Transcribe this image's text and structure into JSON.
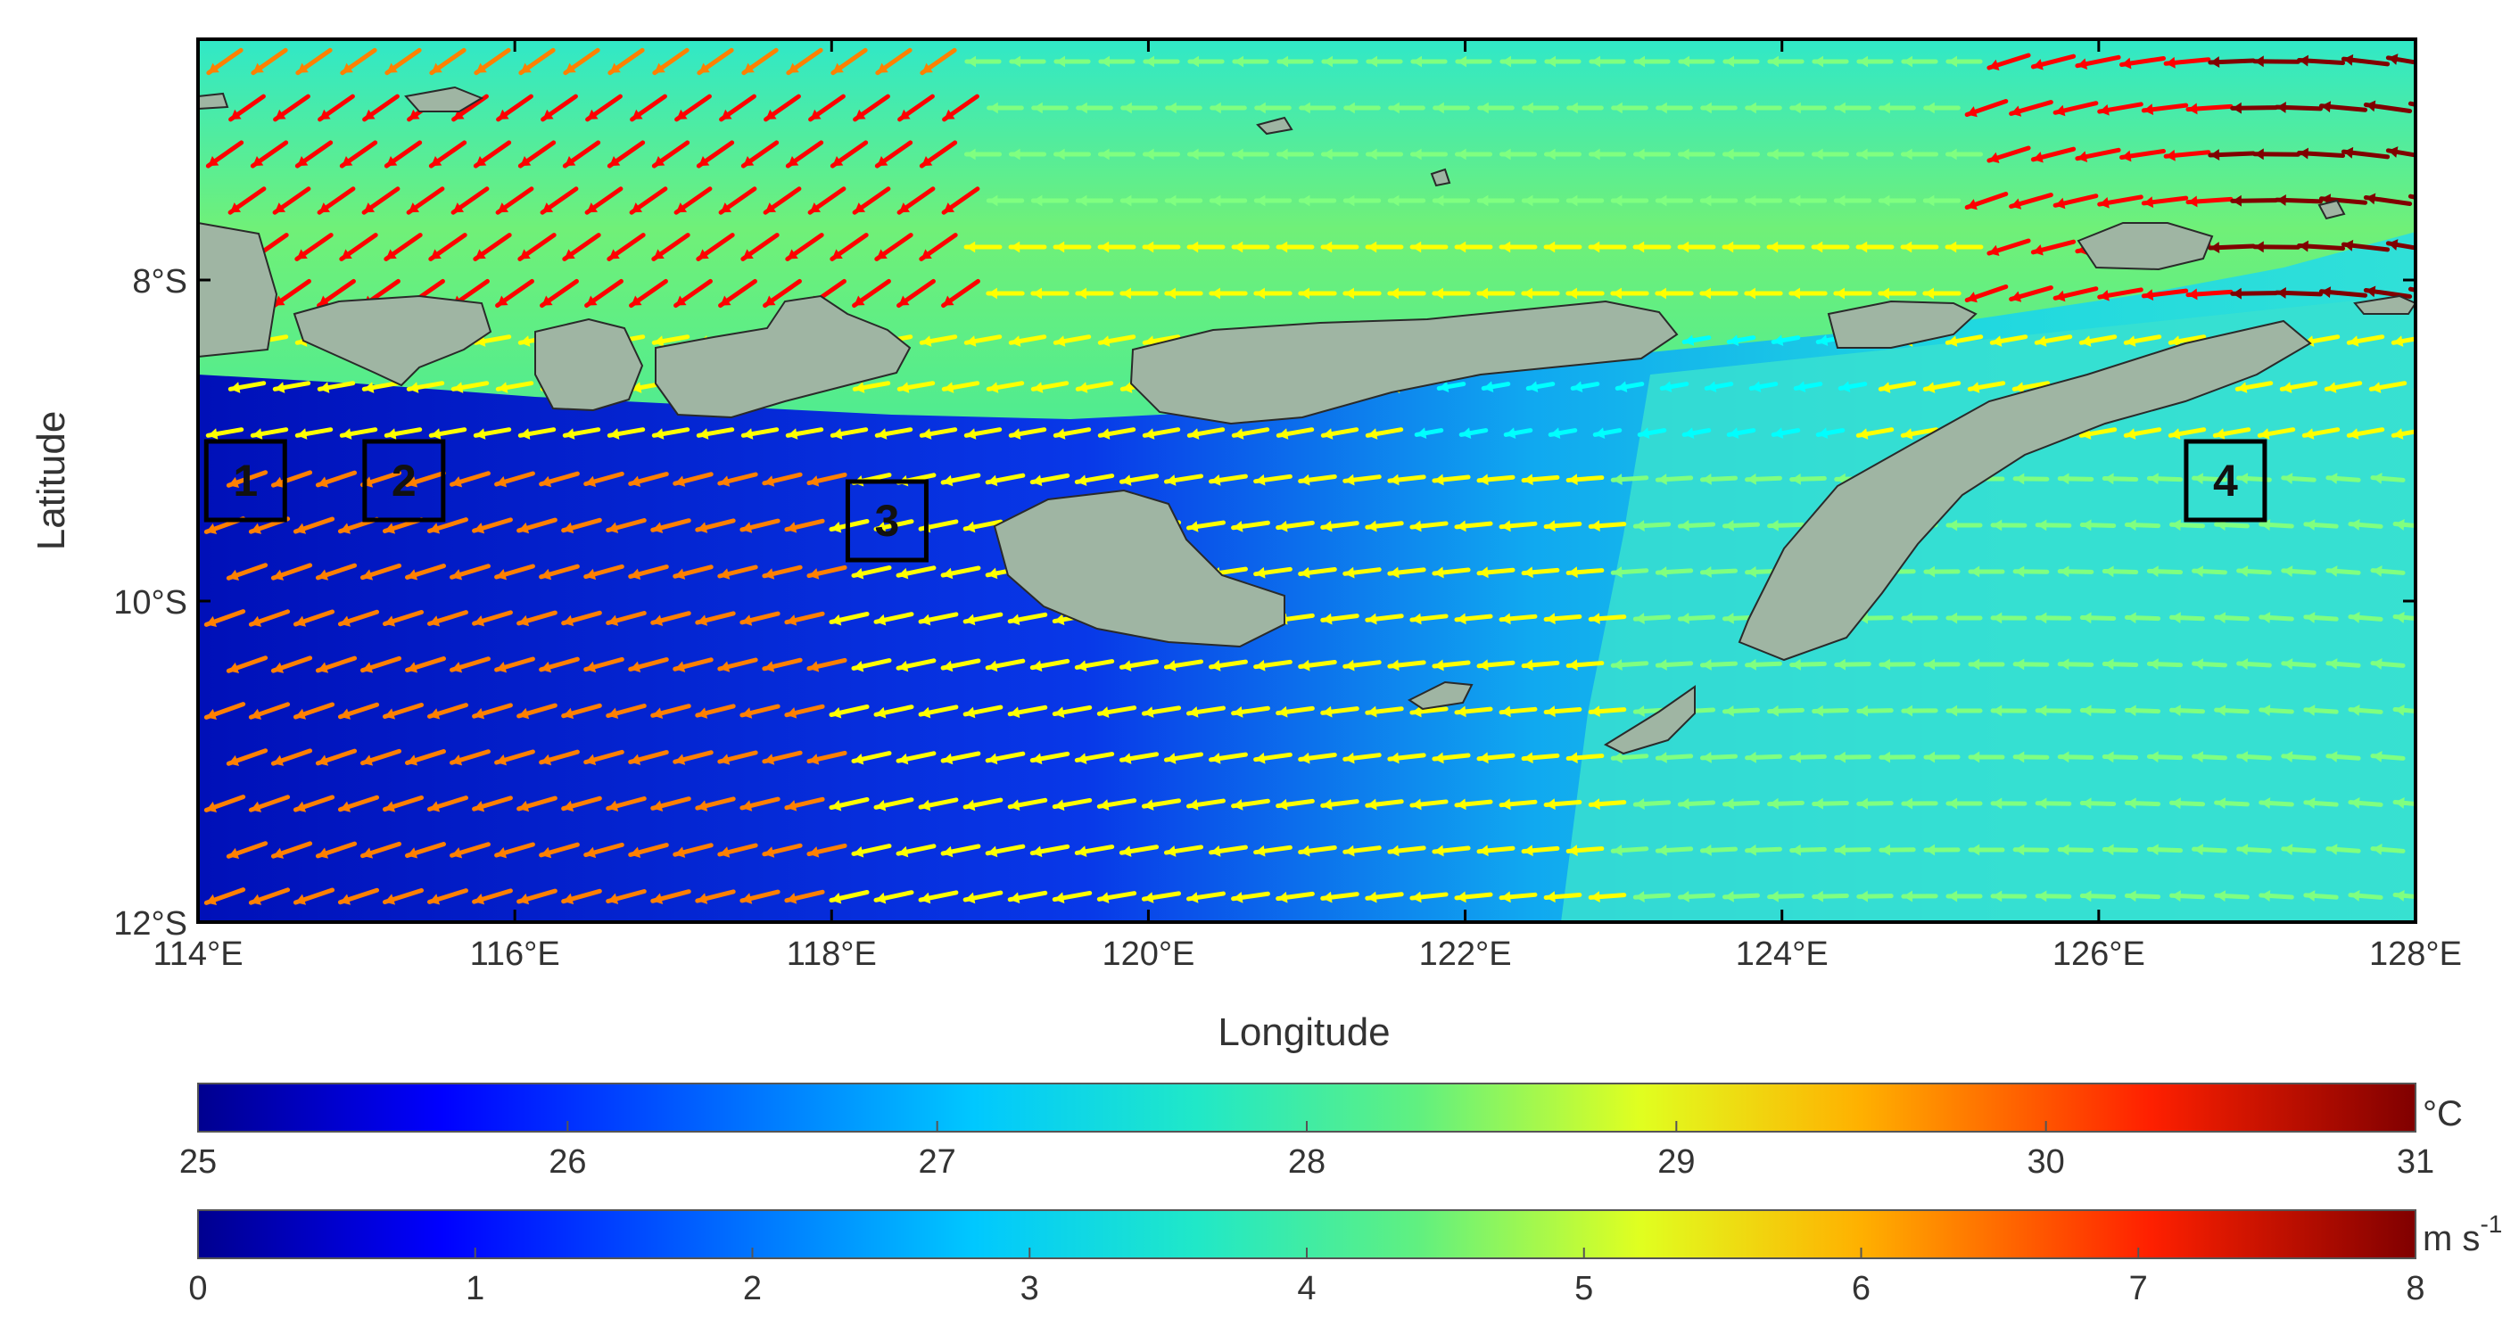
{
  "map": {
    "lon_ticks": [
      "114°E",
      "116°E",
      "118°E",
      "120°E",
      "122°E",
      "124°E",
      "126°E",
      "128°E"
    ],
    "lat_ticks": [
      "8°S",
      "10°S",
      "12°S"
    ],
    "xlabel": "Longitude",
    "ylabel": "Latitude",
    "lon_range": [
      114,
      128
    ],
    "lat_range": [
      -12,
      -6.5
    ],
    "land_color": "#9fb5a3",
    "boxes": [
      {
        "label": "1",
        "lon": 114.3,
        "lat": -9.25
      },
      {
        "label": "2",
        "lon": 115.3,
        "lat": -9.25
      },
      {
        "label": "3",
        "lon": 118.35,
        "lat": -9.5
      },
      {
        "label": "4",
        "lon": 126.8,
        "lat": -9.25
      }
    ]
  },
  "colorbars": {
    "sst": {
      "unit": "°C",
      "ticks": [
        "25",
        "26",
        "27",
        "28",
        "29",
        "30",
        "31"
      ],
      "range": [
        25,
        31
      ]
    },
    "wind": {
      "unit_main": "m s",
      "unit_sup": "-1",
      "ticks": [
        "0",
        "1",
        "2",
        "3",
        "4",
        "5",
        "6",
        "7",
        "8"
      ],
      "range": [
        0,
        8
      ]
    },
    "colormap": [
      "#00008f",
      "#0000ff",
      "#0080ff",
      "#00ffff",
      "#20e0a0",
      "#80ff80",
      "#ffff00",
      "#ff8000",
      "#ff0000",
      "#800000"
    ]
  }
}
